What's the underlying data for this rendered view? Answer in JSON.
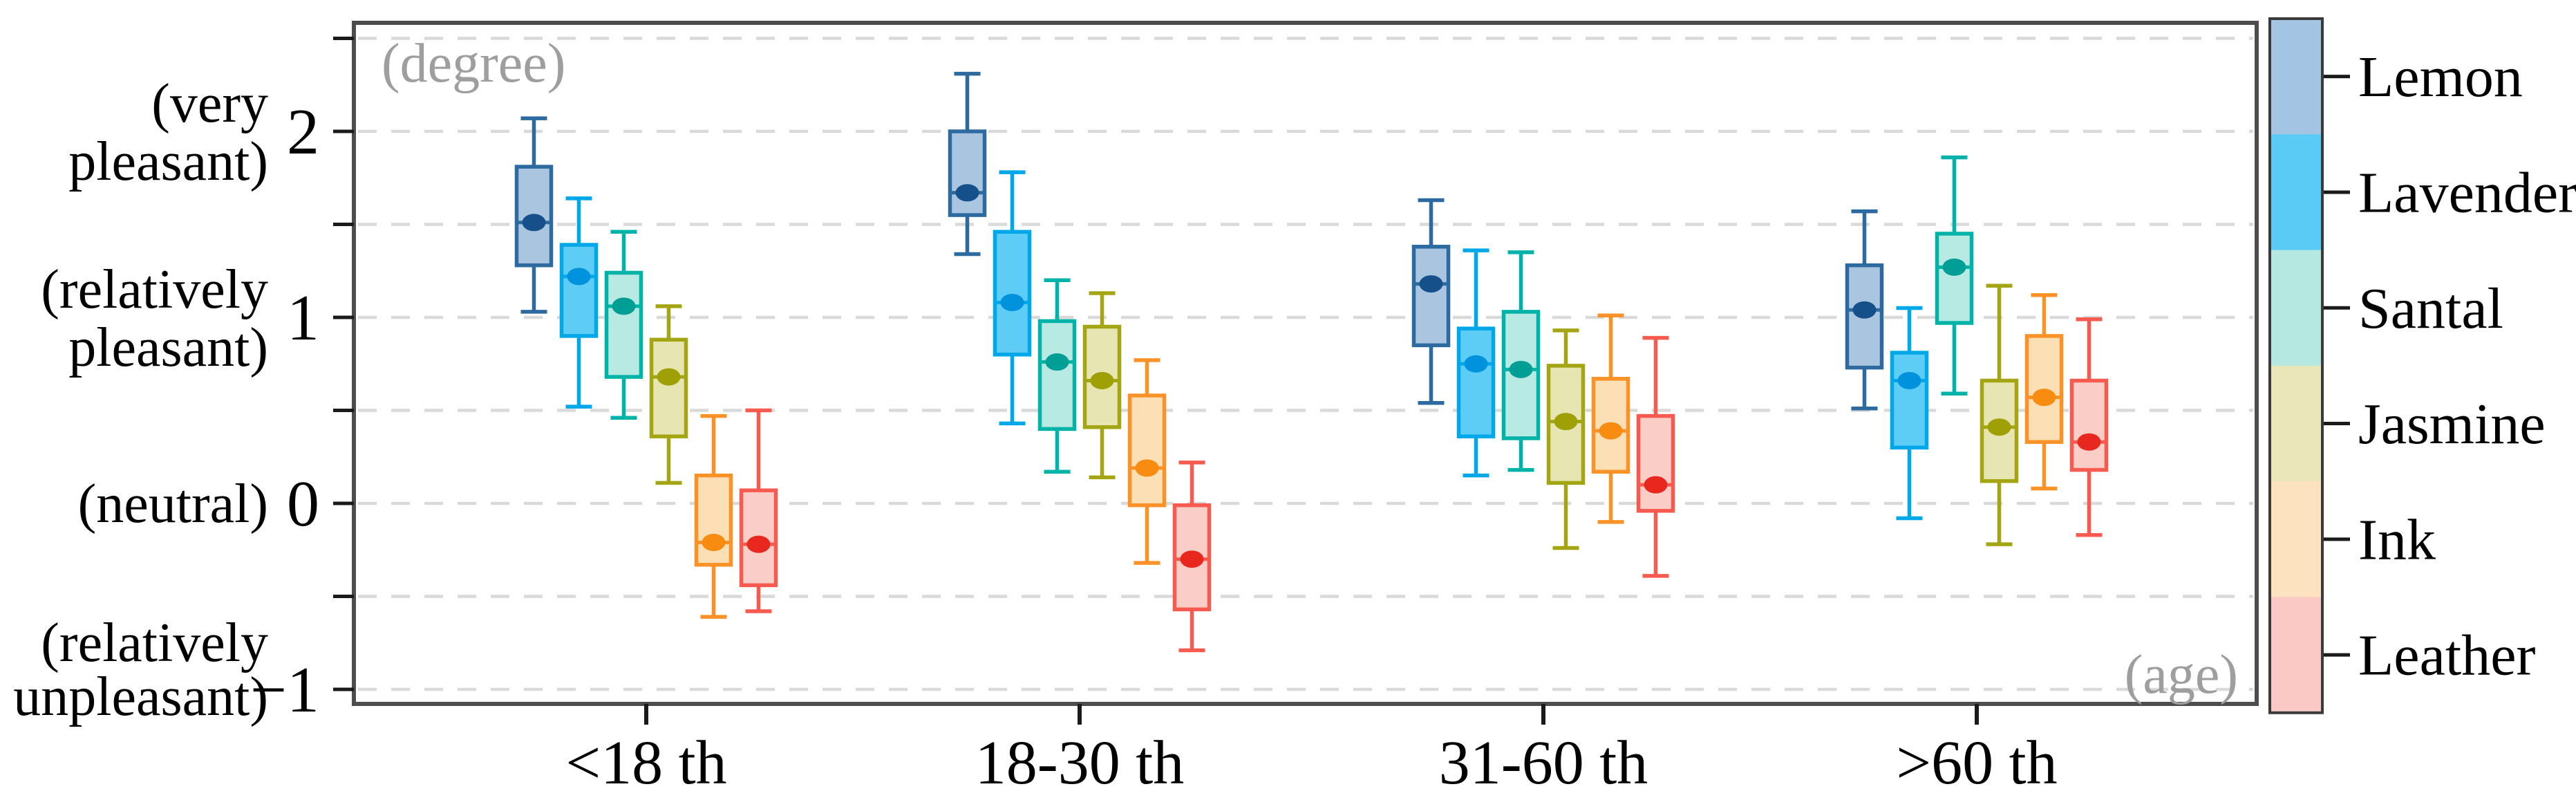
{
  "chart_data": {
    "type": "boxplot",
    "title": "",
    "y_axis": {
      "unit_label": "(degree)",
      "range": [
        -1.05,
        2.58
      ],
      "grid_step": 0.5,
      "grid_values": [
        2.5,
        2,
        1.5,
        1,
        0.5,
        0,
        -0.5,
        -1
      ],
      "ticks": [
        {
          "value": 2,
          "label": "2",
          "desc": [
            "(very",
            "pleasant)"
          ]
        },
        {
          "value": 1,
          "label": "1",
          "desc": [
            "(relatively",
            "pleasant)"
          ]
        },
        {
          "value": 0,
          "label": "0",
          "desc": [
            "(neutral)"
          ]
        },
        {
          "value": -1,
          "label": "−1",
          "desc": [
            "(relatively",
            "unpleasant)"
          ]
        }
      ]
    },
    "x_axis": {
      "unit_label": "(age)",
      "categories": [
        "<18 th",
        "18-30 th",
        "31-60 th",
        ">60 th"
      ]
    },
    "legend_position": "right",
    "grid": "dashed",
    "series": [
      {
        "name": "Lemon",
        "stroke": "#2d6a9f",
        "fill": "#a9c5e0",
        "dot": "#15508a",
        "legend": "#a4c4e4",
        "boxes": [
          {
            "lo": 1.03,
            "q1": 1.28,
            "med": 1.51,
            "q3": 1.81,
            "hi": 2.07
          },
          {
            "lo": 1.34,
            "q1": 1.55,
            "med": 1.67,
            "q3": 2.0,
            "hi": 2.31
          },
          {
            "lo": 0.54,
            "q1": 0.85,
            "med": 1.18,
            "q3": 1.38,
            "hi": 1.63
          },
          {
            "lo": 0.51,
            "q1": 0.73,
            "med": 1.04,
            "q3": 1.28,
            "hi": 1.57
          }
        ]
      },
      {
        "name": "Lavender",
        "stroke": "#00a7e9",
        "fill": "#5ecdf5",
        "dot": "#0092dd",
        "legend": "#59cbf4",
        "boxes": [
          {
            "lo": 0.52,
            "q1": 0.9,
            "med": 1.22,
            "q3": 1.39,
            "hi": 1.64
          },
          {
            "lo": 0.43,
            "q1": 0.8,
            "med": 1.08,
            "q3": 1.46,
            "hi": 1.78
          },
          {
            "lo": 0.15,
            "q1": 0.36,
            "med": 0.75,
            "q3": 0.94,
            "hi": 1.36
          },
          {
            "lo": -0.08,
            "q1": 0.3,
            "med": 0.66,
            "q3": 0.81,
            "hi": 1.05
          }
        ]
      },
      {
        "name": "Santal",
        "stroke": "#00b3a8",
        "fill": "#b6eae2",
        "dot": "#009e94",
        "legend": "#b4e8e1",
        "boxes": [
          {
            "lo": 0.46,
            "q1": 0.68,
            "med": 1.06,
            "q3": 1.24,
            "hi": 1.46
          },
          {
            "lo": 0.17,
            "q1": 0.4,
            "med": 0.76,
            "q3": 0.98,
            "hi": 1.2
          },
          {
            "lo": 0.18,
            "q1": 0.35,
            "med": 0.72,
            "q3": 1.03,
            "hi": 1.35
          },
          {
            "lo": 0.59,
            "q1": 0.97,
            "med": 1.27,
            "q3": 1.45,
            "hi": 1.86
          }
        ]
      },
      {
        "name": "Jasmine",
        "stroke": "#a4a512",
        "fill": "#e7e6b2",
        "dot": "#9fa005",
        "legend": "#eae6b9",
        "boxes": [
          {
            "lo": 0.11,
            "q1": 0.36,
            "med": 0.68,
            "q3": 0.88,
            "hi": 1.06
          },
          {
            "lo": 0.14,
            "q1": 0.41,
            "med": 0.66,
            "q3": 0.95,
            "hi": 1.13
          },
          {
            "lo": -0.24,
            "q1": 0.11,
            "med": 0.44,
            "q3": 0.74,
            "hi": 0.93
          },
          {
            "lo": -0.22,
            "q1": 0.12,
            "med": 0.41,
            "q3": 0.66,
            "hi": 1.17
          }
        ]
      },
      {
        "name": "Ink",
        "stroke": "#fb9227",
        "fill": "#fcdfb4",
        "dot": "#f88c10",
        "legend": "#fde2c0",
        "boxes": [
          {
            "lo": -0.61,
            "q1": -0.33,
            "med": -0.21,
            "q3": 0.15,
            "hi": 0.47
          },
          {
            "lo": -0.32,
            "q1": -0.01,
            "med": 0.19,
            "q3": 0.58,
            "hi": 0.77
          },
          {
            "lo": -0.1,
            "q1": 0.17,
            "med": 0.39,
            "q3": 0.67,
            "hi": 1.01
          },
          {
            "lo": 0.08,
            "q1": 0.33,
            "med": 0.57,
            "q3": 0.9,
            "hi": 1.12
          }
        ]
      },
      {
        "name": "Leather",
        "stroke": "#f75b50",
        "fill": "#fbcdc7",
        "dot": "#e8281e",
        "legend": "#fac9c5",
        "boxes": [
          {
            "lo": -0.58,
            "q1": -0.44,
            "med": -0.22,
            "q3": 0.07,
            "hi": 0.5
          },
          {
            "lo": -0.79,
            "q1": -0.57,
            "med": -0.3,
            "q3": -0.01,
            "hi": 0.22
          },
          {
            "lo": -0.39,
            "q1": -0.04,
            "med": 0.1,
            "q3": 0.47,
            "hi": 0.89
          },
          {
            "lo": -0.17,
            "q1": 0.18,
            "med": 0.33,
            "q3": 0.66,
            "hi": 0.99
          }
        ]
      }
    ],
    "colors": {
      "frame": "#4d4d4d",
      "gridline": "#d9d9d9",
      "tick": "#1a1a1a",
      "axis_text": "#000000",
      "unit_text": "#9e9e9e",
      "background": "#ffffff"
    }
  }
}
